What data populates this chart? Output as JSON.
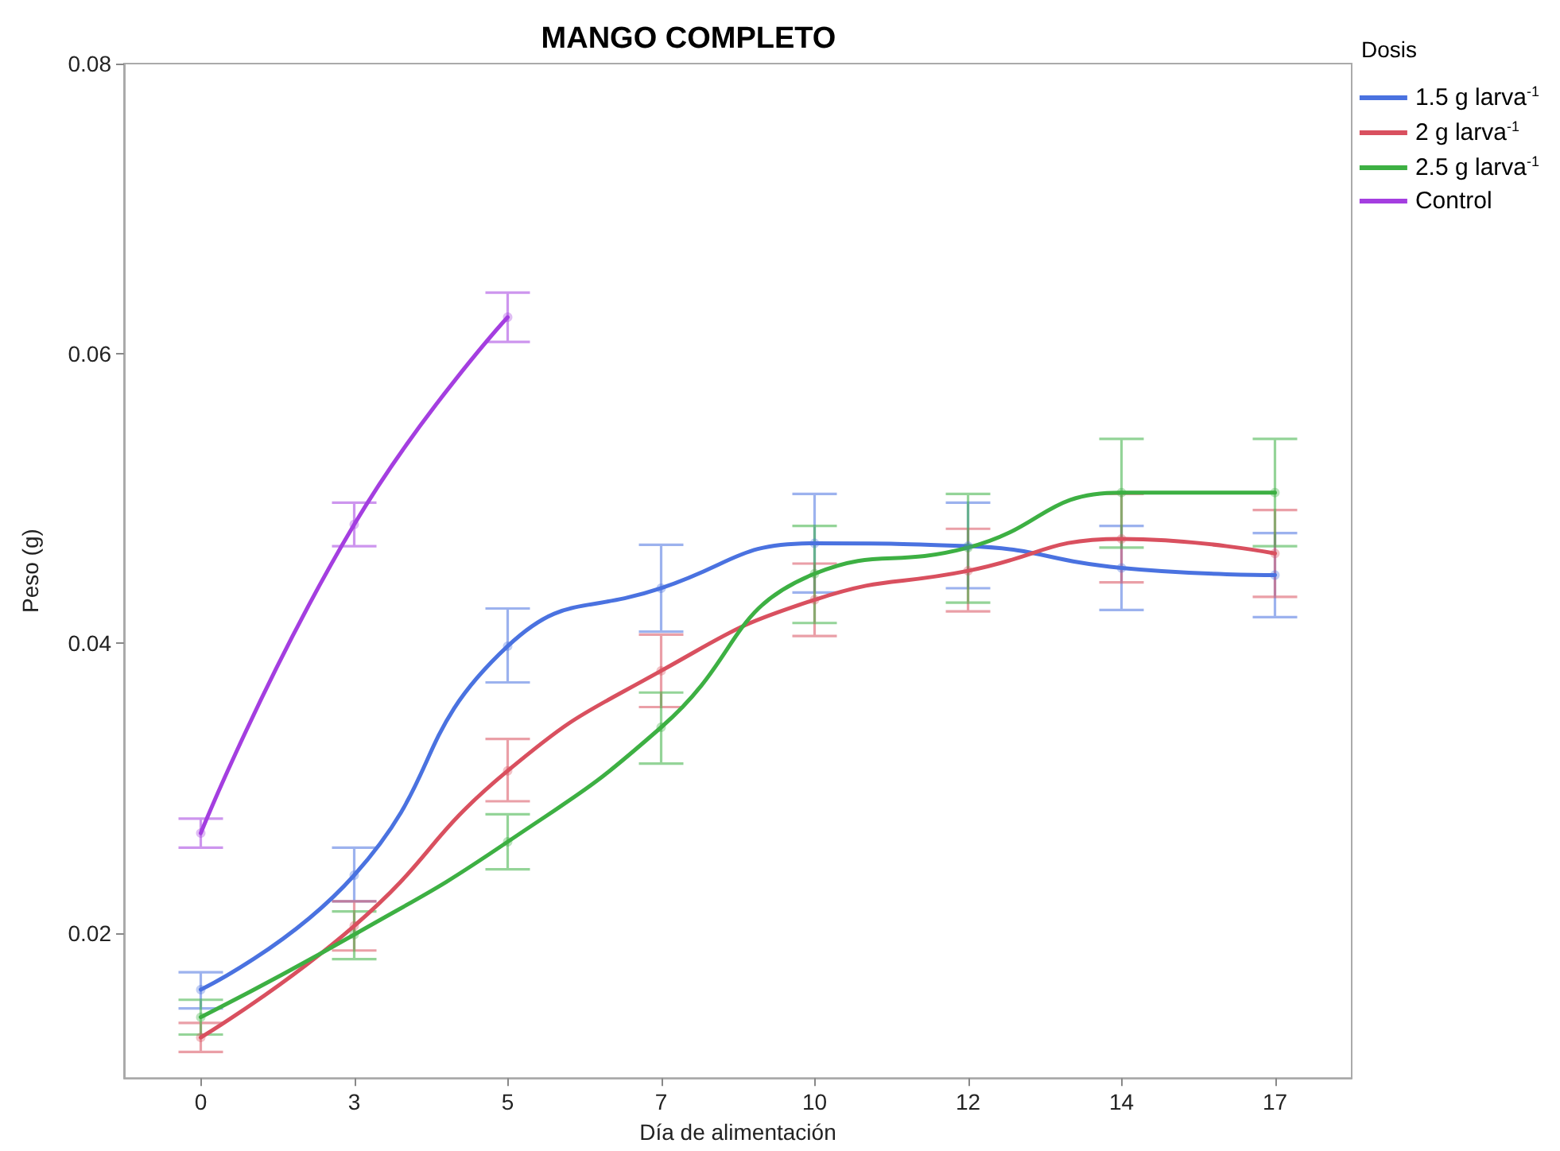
{
  "chart_data": {
    "type": "line",
    "title": "MANGO COMPLETO",
    "xlabel": "Día de alimentación",
    "ylabel": "Peso (g)",
    "legend_title": "Dosis",
    "categories": [
      "0",
      "3",
      "5",
      "7",
      "10",
      "12",
      "14",
      "17"
    ],
    "series": [
      {
        "name": "1.5 g larva$^{-1}$",
        "color": "#4a72e0",
        "values": [
          0.0161,
          0.024,
          0.0398,
          0.0438,
          0.0469,
          0.0467,
          0.0452,
          0.0447
        ],
        "errors": [
          [
            0.0148,
            0.0173
          ],
          [
            0.0222,
            0.0259
          ],
          [
            0.0373,
            0.0424
          ],
          [
            0.0408,
            0.0468
          ],
          [
            0.0435,
            0.0503
          ],
          [
            0.0438,
            0.0497
          ],
          [
            0.0423,
            0.0481
          ],
          [
            0.0418,
            0.0476
          ]
        ]
      },
      {
        "name": "2 g larva$^{-1}$",
        "color": "#d9505f",
        "values": [
          0.0128,
          0.0205,
          0.0312,
          0.0381,
          0.043,
          0.045,
          0.0472,
          0.0462
        ],
        "errors": [
          [
            0.0118,
            0.0138
          ],
          [
            0.0188,
            0.0222
          ],
          [
            0.0291,
            0.0334
          ],
          [
            0.0356,
            0.0406
          ],
          [
            0.0405,
            0.0455
          ],
          [
            0.0422,
            0.0479
          ],
          [
            0.0442,
            0.0503
          ],
          [
            0.0432,
            0.0492
          ]
        ]
      },
      {
        "name": "2.5 g larva$^{-1}$",
        "color": "#3db043",
        "values": [
          0.0142,
          0.0199,
          0.0263,
          0.0342,
          0.0448,
          0.0466,
          0.0504,
          0.0504
        ],
        "errors": [
          [
            0.013,
            0.0154
          ],
          [
            0.0182,
            0.0215
          ],
          [
            0.0244,
            0.0282
          ],
          [
            0.0317,
            0.0366
          ],
          [
            0.0414,
            0.0481
          ],
          [
            0.0428,
            0.0503
          ],
          [
            0.0466,
            0.0541
          ],
          [
            0.0467,
            0.0541
          ]
        ]
      },
      {
        "name": "Control",
        "color": "#a43ee0",
        "values": [
          0.0269,
          0.0482,
          0.0625,
          null,
          null,
          null,
          null,
          null
        ],
        "errors": [
          [
            0.0259,
            0.0279
          ],
          [
            0.0467,
            0.0497
          ],
          [
            0.0608,
            0.0642
          ],
          null,
          null,
          null,
          null,
          null
        ]
      }
    ],
    "ylim": [
      0.01,
      0.08
    ],
    "yticks": [
      0.02,
      0.04,
      0.06,
      0.08
    ],
    "grid": false,
    "legend": "top right",
    "marker": "circle",
    "line_style": "solid"
  }
}
